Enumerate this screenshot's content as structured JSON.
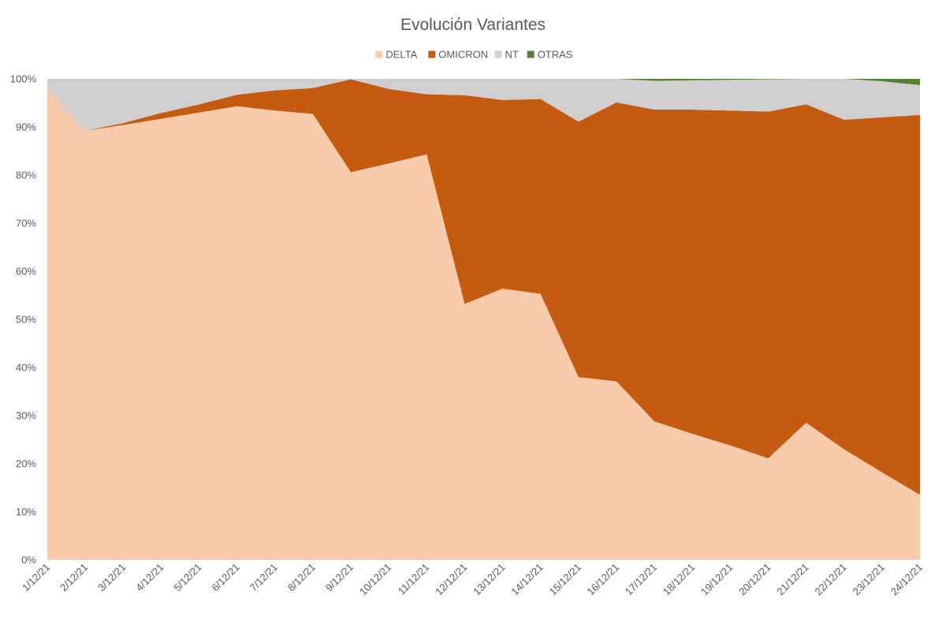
{
  "chart_data": {
    "type": "area",
    "stacked": "percent",
    "title": "Evolución Variantes",
    "xlabel": "",
    "ylabel": "",
    "ylim": [
      0,
      100
    ],
    "legend_position": "top",
    "grid": false,
    "y_ticks": [
      "0%",
      "10%",
      "20%",
      "30%",
      "40%",
      "50%",
      "60%",
      "70%",
      "80%",
      "90%",
      "100%"
    ],
    "categories": [
      "1/12/21",
      "2/12/21",
      "3/12/21",
      "4/12/21",
      "5/12/21",
      "6/12/21",
      "7/12/21",
      "8/12/21",
      "9/12/21",
      "10/12/21",
      "11/12/21",
      "12/12/21",
      "13/12/21",
      "14/12/21",
      "15/12/21",
      "16/12/21",
      "17/12/21",
      "18/12/21",
      "19/12/21",
      "20/12/21",
      "21/12/21",
      "22/12/21",
      "23/12/21",
      "24/12/21"
    ],
    "series": [
      {
        "name": "DELTA",
        "color": "#F8CBAD",
        "values": [
          98.0,
          89.2,
          90.4,
          91.7,
          93.0,
          94.3,
          93.4,
          92.7,
          80.6,
          82.4,
          84.3,
          53.2,
          56.4,
          55.3,
          38.0,
          37.1,
          28.8,
          26.2,
          23.8,
          21.1,
          28.5,
          23.0,
          18.2,
          13.5
        ]
      },
      {
        "name": "OMICRON",
        "color": "#C55A11",
        "values": [
          0.0,
          0.0,
          0.4,
          1.2,
          1.7,
          2.4,
          4.2,
          5.4,
          19.3,
          15.5,
          12.5,
          43.4,
          39.2,
          40.5,
          53.1,
          58.0,
          64.8,
          67.4,
          69.6,
          72.1,
          66.2,
          68.5,
          73.8,
          79.0
        ]
      },
      {
        "name": "NT",
        "color": "#D0CECE",
        "values": [
          2.0,
          10.8,
          9.2,
          7.1,
          5.3,
          3.3,
          2.4,
          1.9,
          0.1,
          2.1,
          3.2,
          3.4,
          4.4,
          4.2,
          8.9,
          4.9,
          6.0,
          6.1,
          6.4,
          6.7,
          5.3,
          8.5,
          7.5,
          6.2
        ]
      },
      {
        "name": "OTRAS",
        "color": "#548235",
        "values": [
          0.0,
          0.0,
          0.0,
          0.0,
          0.0,
          0.0,
          0.0,
          0.0,
          0.0,
          0.0,
          0.0,
          0.0,
          0.0,
          0.0,
          0.0,
          0.0,
          0.4,
          0.3,
          0.2,
          0.1,
          0.0,
          0.0,
          0.5,
          1.3
        ]
      }
    ]
  }
}
